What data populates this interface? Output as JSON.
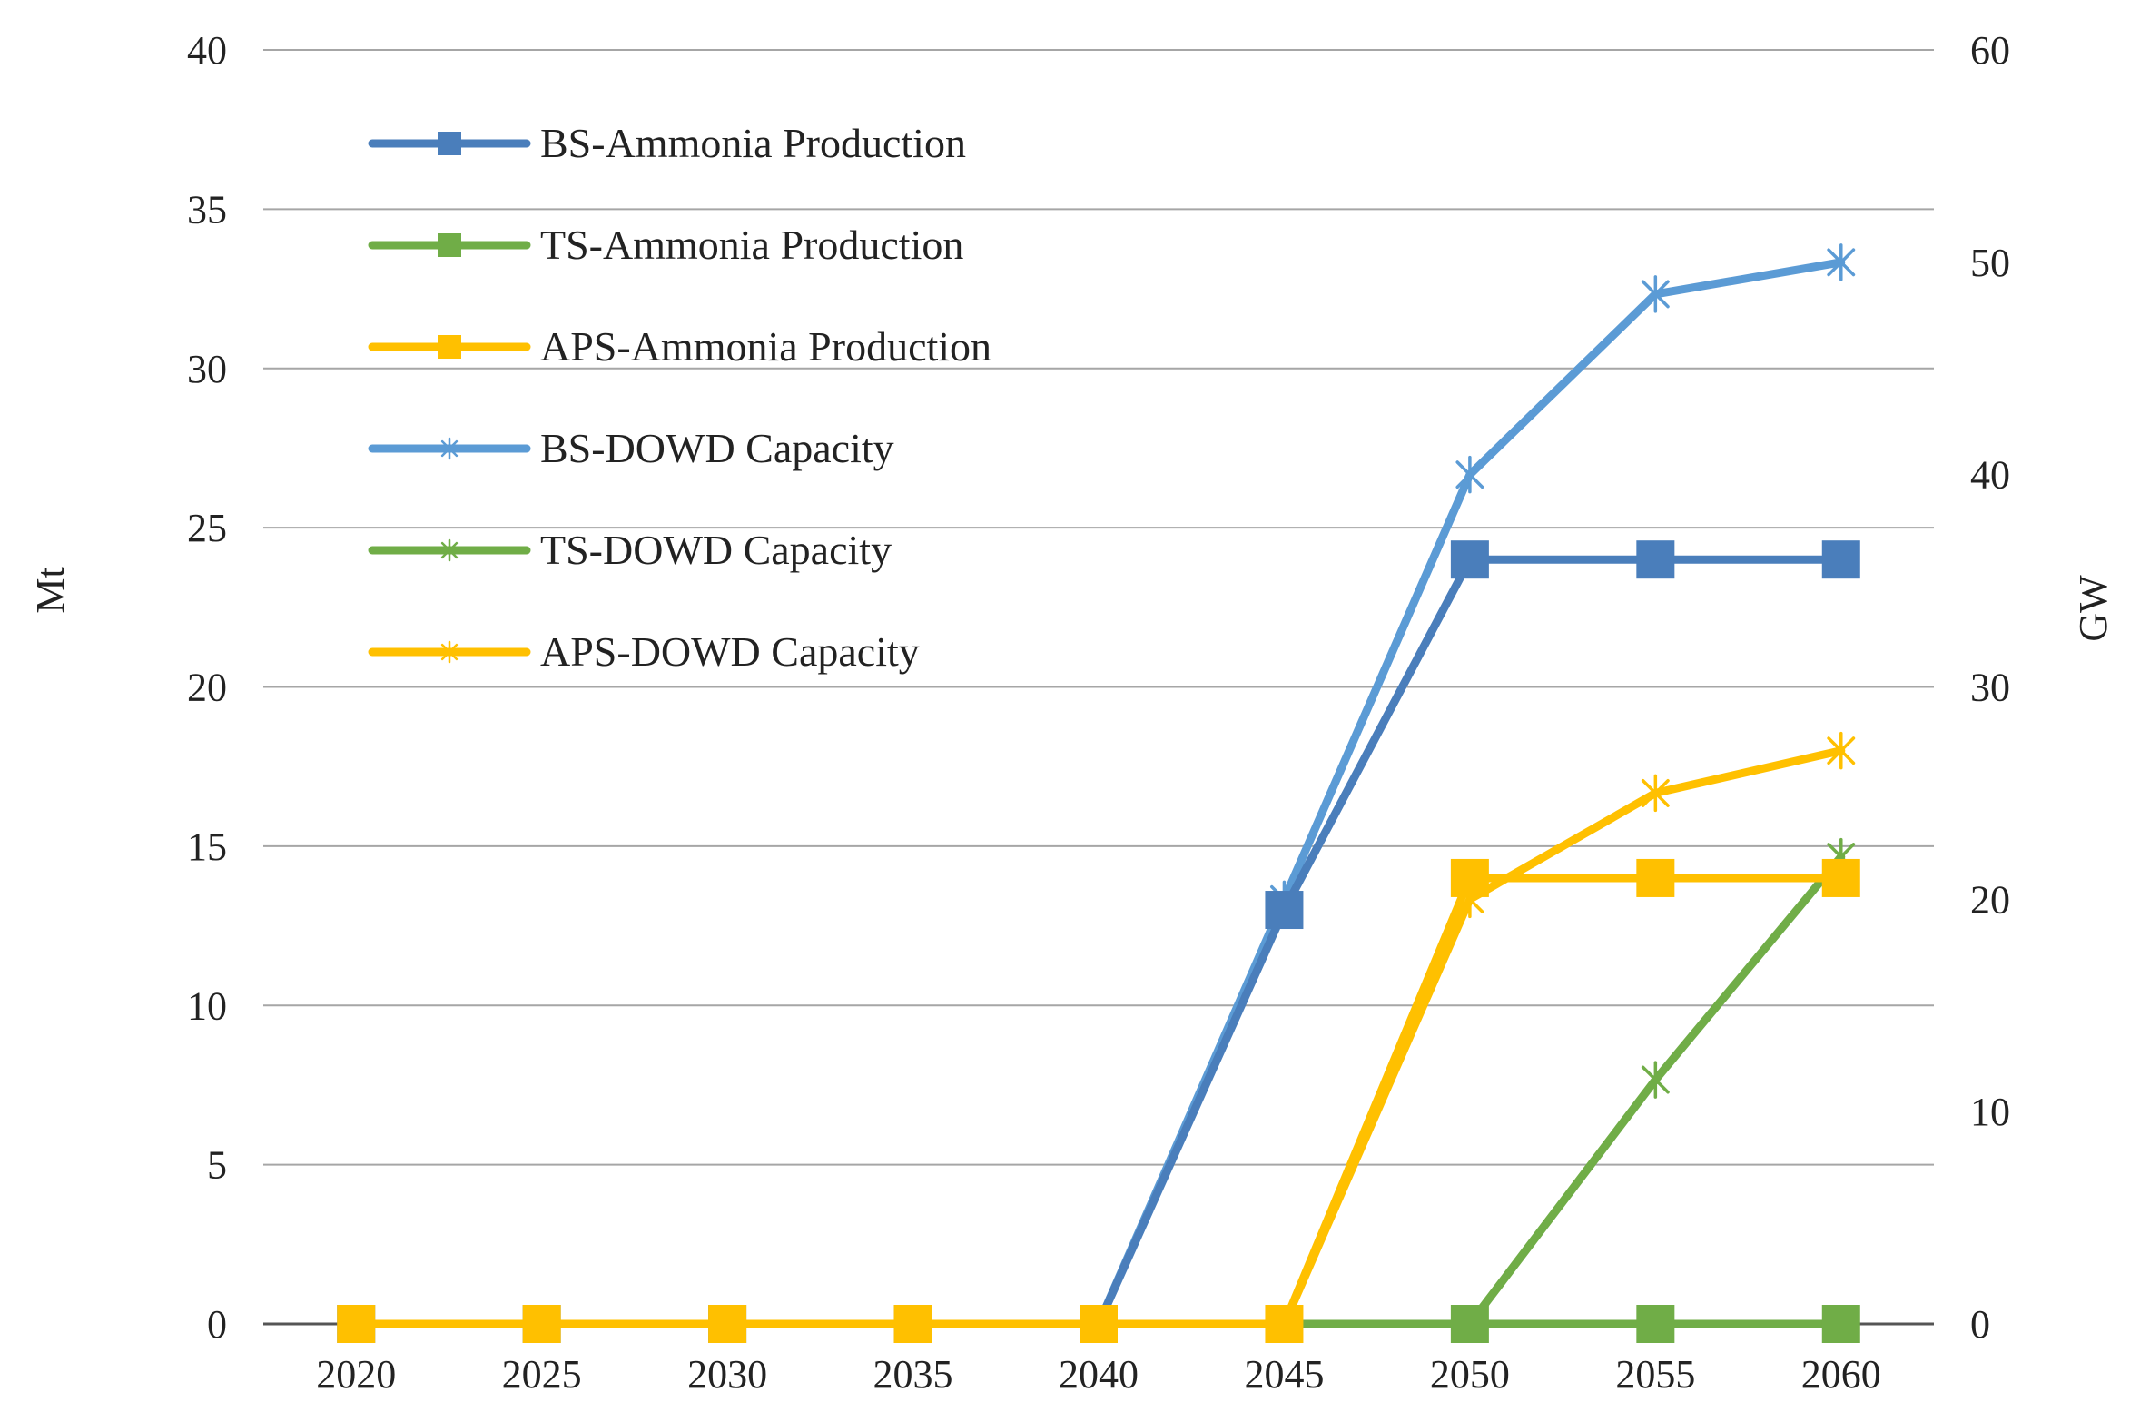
{
  "chart_data": {
    "type": "line",
    "title": "",
    "x": [
      "2020",
      "2025",
      "2030",
      "2035",
      "2040",
      "2045",
      "2050",
      "2055",
      "2060"
    ],
    "xlabel": "",
    "ylabel": "Mt",
    "y2label": "GW",
    "ylim": [
      0,
      40
    ],
    "y2lim": [
      0,
      60
    ],
    "yticks": [
      "0",
      "5",
      "10",
      "15",
      "20",
      "25",
      "30",
      "35",
      "40"
    ],
    "y2ticks": [
      "0",
      "10",
      "20",
      "30",
      "40",
      "50",
      "60"
    ],
    "grid": true,
    "legend_position": "top-left",
    "series": [
      {
        "name": "BS-Ammonia Production",
        "axis": "left",
        "marker": "square",
        "color": "#4a7ebb",
        "values": [
          0,
          0,
          0,
          0,
          0,
          13,
          24,
          24,
          24
        ]
      },
      {
        "name": "TS-Ammonia Production",
        "axis": "left",
        "marker": "square",
        "color": "#70ad47",
        "values": [
          null,
          null,
          null,
          null,
          null,
          null,
          0,
          0,
          0
        ]
      },
      {
        "name": "APS-Ammonia Production",
        "axis": "left",
        "marker": "square",
        "color": "#ffc000",
        "values": [
          0,
          0,
          0,
          0,
          0,
          0,
          14,
          14,
          14
        ]
      },
      {
        "name": "BS-DOWD Capacity",
        "axis": "right",
        "marker": "star",
        "color": "#5b9bd5",
        "values": [
          0,
          0,
          0,
          0,
          0,
          20,
          40,
          48.5,
          50
        ]
      },
      {
        "name": "TS-DOWD Capacity",
        "axis": "right",
        "marker": "star",
        "color": "#70ad47",
        "values": [
          null,
          null,
          null,
          null,
          null,
          0,
          0,
          11.5,
          22
        ]
      },
      {
        "name": "APS-DOWD Capacity",
        "axis": "right",
        "marker": "star",
        "color": "#ffc000",
        "values": [
          0,
          0,
          0,
          0,
          0,
          0,
          20,
          25,
          27
        ]
      }
    ]
  }
}
